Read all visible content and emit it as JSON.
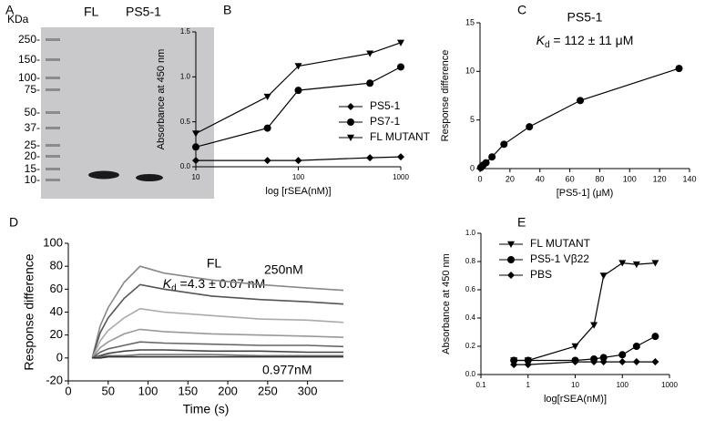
{
  "gel": {
    "panel": "A",
    "unit_label": "KDa",
    "lanes": [
      "FL",
      "PS5-1"
    ],
    "ladder": [
      "250-",
      "150-",
      "100-",
      "75-",
      "50-",
      "37-",
      "25-",
      "20-",
      "15-",
      "10-"
    ]
  },
  "chart_data": [
    {
      "type": "line",
      "panel": "B",
      "xlabel": "log [rSEA(nM)]",
      "ylabel": "Absorbance at 450 nm",
      "xscale": "log",
      "xlim": [
        10,
        1000
      ],
      "xticks": [
        10,
        100,
        1000
      ],
      "ylim": [
        0,
        1.5
      ],
      "yticks": [
        {
          "value": 0,
          "label": "0.0"
        },
        0.5,
        {
          "value": 1,
          "label": "1.0"
        },
        1.5
      ],
      "x": [
        10,
        50,
        100,
        500,
        1000
      ],
      "series": [
        {
          "name": "PS5-1",
          "color": "#000000",
          "marker": "diamond",
          "values": [
            0.07,
            0.07,
            0.07,
            0.1,
            0.11
          ]
        },
        {
          "name": "PS7-1",
          "color": "#000000",
          "marker": "circle",
          "values": [
            0.22,
            0.43,
            0.85,
            0.93,
            1.11
          ]
        },
        {
          "name": "FL MUTANT",
          "color": "#000000",
          "marker": "triangle-down",
          "values": [
            0.37,
            0.78,
            1.12,
            1.26,
            1.38
          ]
        }
      ]
    },
    {
      "type": "line",
      "panel": "C",
      "title": "PS5-1",
      "kd": {
        "symbol": "K",
        "subscript": "d",
        "text": " = 112 ± 11 μM"
      },
      "xlabel": "[PS5-1] (μM)",
      "ylabel": "Response difference",
      "xlim": [
        0,
        140
      ],
      "xticks": [
        0,
        20,
        40,
        60,
        80,
        100,
        120,
        140
      ],
      "ylim": [
        0,
        15
      ],
      "yticks": [
        0,
        5,
        10,
        15
      ],
      "x": [
        0.5,
        1,
        2,
        4,
        8,
        16,
        33,
        67,
        133
      ],
      "series": [
        {
          "color": "#000000",
          "marker": "circle",
          "values": [
            0.1,
            0.2,
            0.35,
            0.6,
            1.2,
            2.5,
            4.3,
            7,
            10.3
          ]
        }
      ]
    },
    {
      "type": "line",
      "panel": "D",
      "title": "FL",
      "kd": {
        "symbol": "K",
        "subscript": "d",
        "text": " =4.3 ± 0.07 nM"
      },
      "annotations": [
        "250nM",
        "0.977nM"
      ],
      "xlabel": "Time (s)",
      "ylabel": "Response difference",
      "xlim": [
        0,
        345
      ],
      "xticks": [
        0,
        50,
        100,
        150,
        200,
        250,
        300
      ],
      "ylim": [
        -20,
        100
      ],
      "yticks": [
        -20,
        0,
        20,
        40,
        60,
        80,
        100
      ],
      "x": [
        30,
        40,
        50,
        70,
        90,
        120,
        180,
        240,
        300,
        345
      ],
      "series": [
        {
          "color": "#888888",
          "values": [
            0,
            28,
            44,
            66,
            80,
            74,
            68,
            64,
            61,
            59
          ]
        },
        {
          "color": "#555555",
          "values": [
            0,
            22,
            35,
            52,
            64,
            60,
            54,
            51,
            49,
            47
          ]
        },
        {
          "color": "#aaaaaa",
          "values": [
            0,
            15,
            24,
            35,
            43,
            40,
            37,
            34,
            33,
            31
          ]
        },
        {
          "color": "#999999",
          "values": [
            0,
            9,
            14,
            21,
            25,
            23,
            21,
            20,
            19,
            18
          ]
        },
        {
          "color": "#666666",
          "values": [
            0,
            5,
            8,
            11,
            14,
            13,
            12,
            11,
            11,
            10
          ]
        },
        {
          "color": "#444444",
          "values": [
            0,
            2,
            4,
            6,
            7,
            7,
            6,
            6,
            5,
            5
          ]
        },
        {
          "color": "#777777",
          "values": [
            0,
            1,
            2,
            2,
            3,
            3,
            3,
            2,
            2,
            2
          ]
        },
        {
          "color": "#333333",
          "values": [
            0,
            0,
            1,
            1,
            1,
            1,
            1,
            1,
            1,
            1
          ]
        }
      ]
    },
    {
      "type": "line",
      "panel": "E",
      "xlabel": "log[rSEA(nM)]",
      "ylabel": "Absorbance at 450 nm",
      "xscale": "log",
      "xlim": [
        0.1,
        1000
      ],
      "xticks": [
        0.1,
        1,
        10,
        100,
        1000
      ],
      "ylim": [
        0,
        1
      ],
      "yticks": [
        {
          "value": 0,
          "label": "0.0"
        },
        0.2,
        0.4,
        0.6,
        0.8,
        {
          "value": 1,
          "label": "1.0"
        }
      ],
      "x": [
        0.5,
        1,
        10,
        25,
        40,
        100,
        200,
        500
      ],
      "series": [
        {
          "name": "FL MUTANT",
          "color": "#000000",
          "marker": "triangle-down",
          "values": [
            0.1,
            0.1,
            0.2,
            0.35,
            0.7,
            0.79,
            0.78,
            0.79
          ]
        },
        {
          "name": "PS5-1 Vβ22",
          "color": "#000000",
          "marker": "circle",
          "values": [
            0.1,
            0.1,
            0.1,
            0.11,
            0.12,
            0.14,
            0.2,
            0.27
          ]
        },
        {
          "name": "PBS",
          "color": "#000000",
          "marker": "diamond",
          "values": [
            0.07,
            0.07,
            0.09,
            0.09,
            0.09,
            0.09,
            0.09,
            0.09
          ]
        }
      ]
    }
  ]
}
